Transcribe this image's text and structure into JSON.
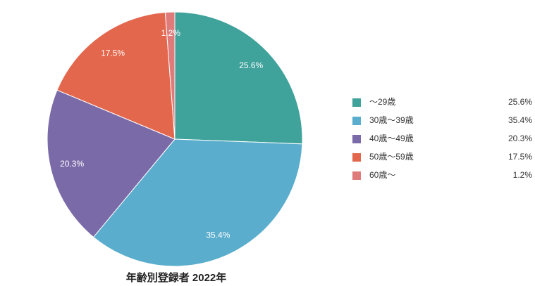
{
  "chart_data": {
    "type": "pie",
    "title": "年齢別登録者 2022年",
    "categories": [
      "〜29歳",
      "30歳〜39歳",
      "40歳〜49歳",
      "50歳〜59歳",
      "60歳〜"
    ],
    "values": [
      25.6,
      35.4,
      20.3,
      17.5,
      1.2
    ],
    "value_labels": [
      "25.6%",
      "35.4%",
      "20.3%",
      "17.5%",
      "1.2%"
    ],
    "colors": [
      "#3fa29b",
      "#5aadcd",
      "#7a6aa8",
      "#e3674c",
      "#e07b7b"
    ],
    "legend": "right"
  }
}
